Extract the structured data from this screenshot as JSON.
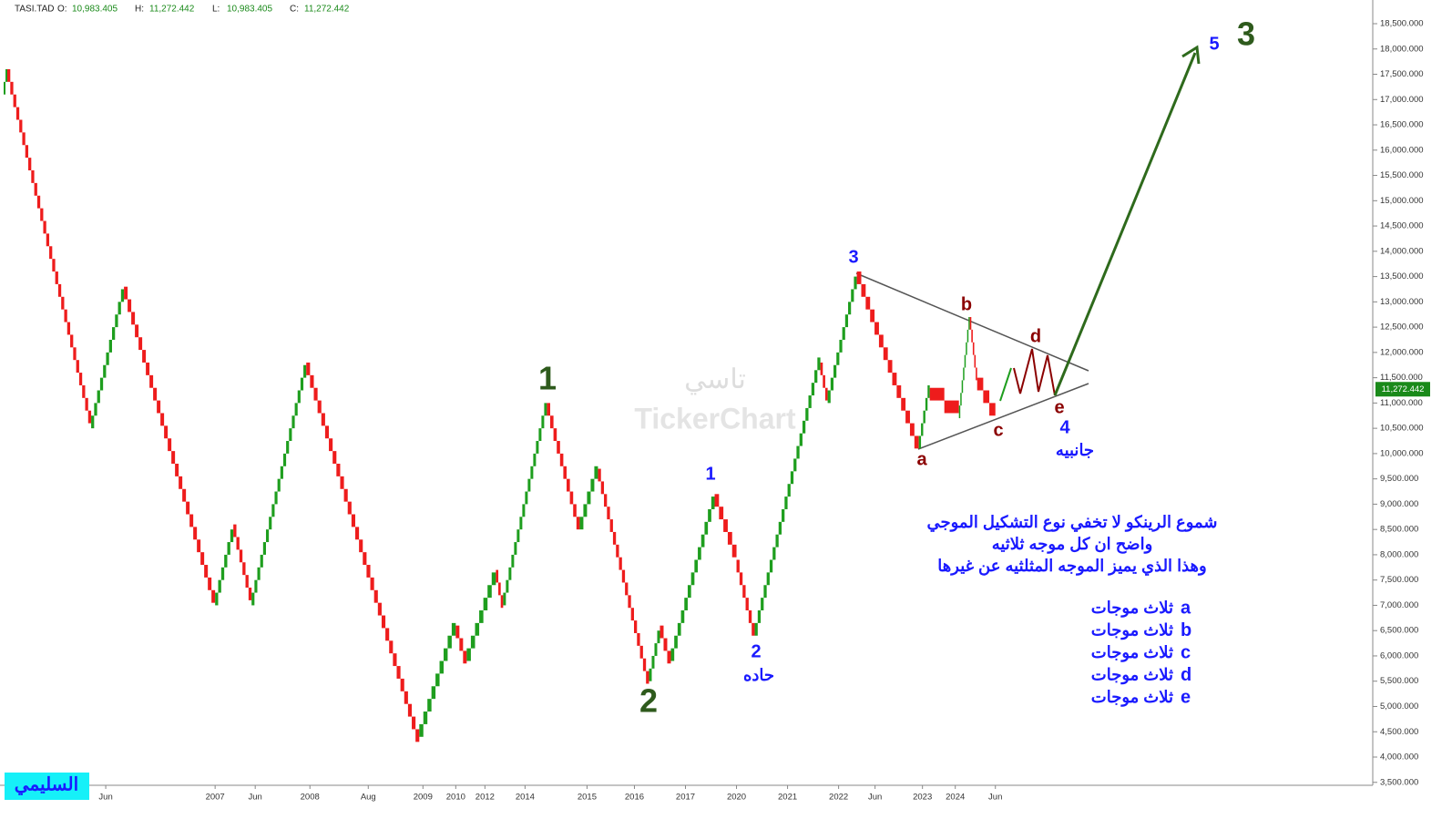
{
  "chart_data": {
    "type": "renko",
    "symbol": "TASI.TAD",
    "ohlc": [
      {
        "label": "O:",
        "value": "10,983.405"
      },
      {
        "label": "H:",
        "value": "11,272.442"
      },
      {
        "label": "L:",
        "value": "10,983.405"
      },
      {
        "label": "C:",
        "value": "11,272.442"
      }
    ],
    "watermark": [
      "تاسي",
      "TickerChart"
    ],
    "author": "السليمي",
    "last_price": {
      "value": 11272.442,
      "label": "11,272.442"
    },
    "brick_size": 250,
    "up_color": "#1e9e1e",
    "down_color": "#ee1c1c",
    "x": [
      1,
      2,
      25,
      34,
      59,
      64,
      69,
      84,
      115,
      125,
      128,
      136,
      138,
      150,
      159,
      164,
      178,
      181,
      184,
      196,
      202,
      207,
      225,
      227,
      235,
      252,
      255,
      263,
      266,
      268,
      273
    ],
    "values": [
      17100,
      17600,
      10500,
      13300,
      7000,
      8600,
      7000,
      11800,
      4400,
      6600,
      5900,
      7700,
      7000,
      11000,
      8500,
      9700,
      5500,
      6600,
      5900,
      9200,
      7900,
      6400,
      11800,
      11000,
      13600,
      10100,
      11300,
      10700,
      12700,
      11500,
      10800
    ],
    "xlim": [
      0,
      376
    ],
    "xlabels": [
      {
        "x": 29,
        "label": "Jun"
      },
      {
        "x": 59,
        "label": "2007"
      },
      {
        "x": 70,
        "label": "Jun"
      },
      {
        "x": 85,
        "label": "2008"
      },
      {
        "x": 101,
        "label": "Aug"
      },
      {
        "x": 116,
        "label": "2009"
      },
      {
        "x": 125,
        "label": "2010"
      },
      {
        "x": 133,
        "label": "2012"
      },
      {
        "x": 144,
        "label": "2014"
      },
      {
        "x": 161,
        "label": "2015"
      },
      {
        "x": 174,
        "label": "2016"
      },
      {
        "x": 188,
        "label": "2017"
      },
      {
        "x": 202,
        "label": "2020"
      },
      {
        "x": 216,
        "label": "2021"
      },
      {
        "x": 230,
        "label": "2022"
      },
      {
        "x": 240,
        "label": "Jun"
      },
      {
        "x": 253,
        "label": "2023"
      },
      {
        "x": 262,
        "label": "2024"
      },
      {
        "x": 273,
        "label": "Jun"
      }
    ],
    "ylim": [
      4000,
      18500
    ],
    "yticks": [
      {
        "value": 3500,
        "label": "3,500.000"
      },
      {
        "value": 4000,
        "label": "4,000.000"
      },
      {
        "value": 4500,
        "label": "4,500.000"
      },
      {
        "value": 5000,
        "label": "5,000.000"
      },
      {
        "value": 5500,
        "label": "5,500.000"
      },
      {
        "value": 6000,
        "label": "6,000.000"
      },
      {
        "value": 6500,
        "label": "6,500.000"
      },
      {
        "value": 7000,
        "label": "7,000.000"
      },
      {
        "value": 7500,
        "label": "7,500.000"
      },
      {
        "value": 8000,
        "label": "8,000.000"
      },
      {
        "value": 8500,
        "label": "8,500.000"
      },
      {
        "value": 9000,
        "label": "9,000.000"
      },
      {
        "value": 9500,
        "label": "9,500.000"
      },
      {
        "value": 10000,
        "label": "10,000.000"
      },
      {
        "value": 10500,
        "label": "10,500.000"
      },
      {
        "value": 11000,
        "label": "11,000.000"
      },
      {
        "value": 11500,
        "label": "11,500.000"
      },
      {
        "value": 12000,
        "label": "12,000.000"
      },
      {
        "value": 12500,
        "label": "12,500.000"
      },
      {
        "value": 13000,
        "label": "13,000.000"
      },
      {
        "value": 13500,
        "label": "13,500.000"
      },
      {
        "value": 14000,
        "label": "14,000.000"
      },
      {
        "value": 14500,
        "label": "14,500.000"
      },
      {
        "value": 15000,
        "label": "15,000.000"
      },
      {
        "value": 15500,
        "label": "15,500.000"
      },
      {
        "value": 16000,
        "label": "16,000.000"
      },
      {
        "value": 16500,
        "label": "16,500.000"
      },
      {
        "value": 17000,
        "label": "17,000.000"
      },
      {
        "value": 17500,
        "label": "17,500.000"
      },
      {
        "value": 18000,
        "label": "18,000.000"
      },
      {
        "value": 18500,
        "label": "18,500.000"
      }
    ],
    "annotations": [
      {
        "text": "1",
        "color": "#2e5a1c"
      },
      {
        "text": "2",
        "color": "#2e5a1c"
      },
      {
        "text": "3",
        "color": "#2e5a1c"
      },
      {
        "text": "1",
        "color": "#1a1aff"
      },
      {
        "text": "2",
        "color": "#1a1aff"
      },
      {
        "text": "حاده",
        "color": "#1a1aff"
      },
      {
        "text": "3",
        "color": "#1a1aff"
      },
      {
        "text": "5",
        "color": "#1a1aff"
      },
      {
        "text": "4",
        "color": "#1a1aff"
      },
      {
        "text": "جانبيه",
        "color": "#1a1aff"
      },
      {
        "text": "a",
        "color": "#8b0000"
      },
      {
        "text": "b",
        "color": "#8b0000"
      },
      {
        "text": "c",
        "color": "#8b0000"
      },
      {
        "text": "d",
        "color": "#8b0000"
      },
      {
        "text": "e",
        "color": "#8b0000"
      }
    ],
    "note": [
      "شموع الرينكو لا تخفي نوع التشكيل الموجي",
      "واضح ان كل موجه ثلاثيه",
      "وهذا الذي يميز الموجه المثلثيه عن غيرها"
    ],
    "wave_list": [
      {
        "letter": "a",
        "text": "ثلاث موجات"
      },
      {
        "letter": "b",
        "text": "ثلاث موجات"
      },
      {
        "letter": "c",
        "text": "ثلاث موجات"
      },
      {
        "letter": "d",
        "text": "ثلاث موجات"
      },
      {
        "letter": "e",
        "text": "ثلاث موجات"
      }
    ]
  }
}
